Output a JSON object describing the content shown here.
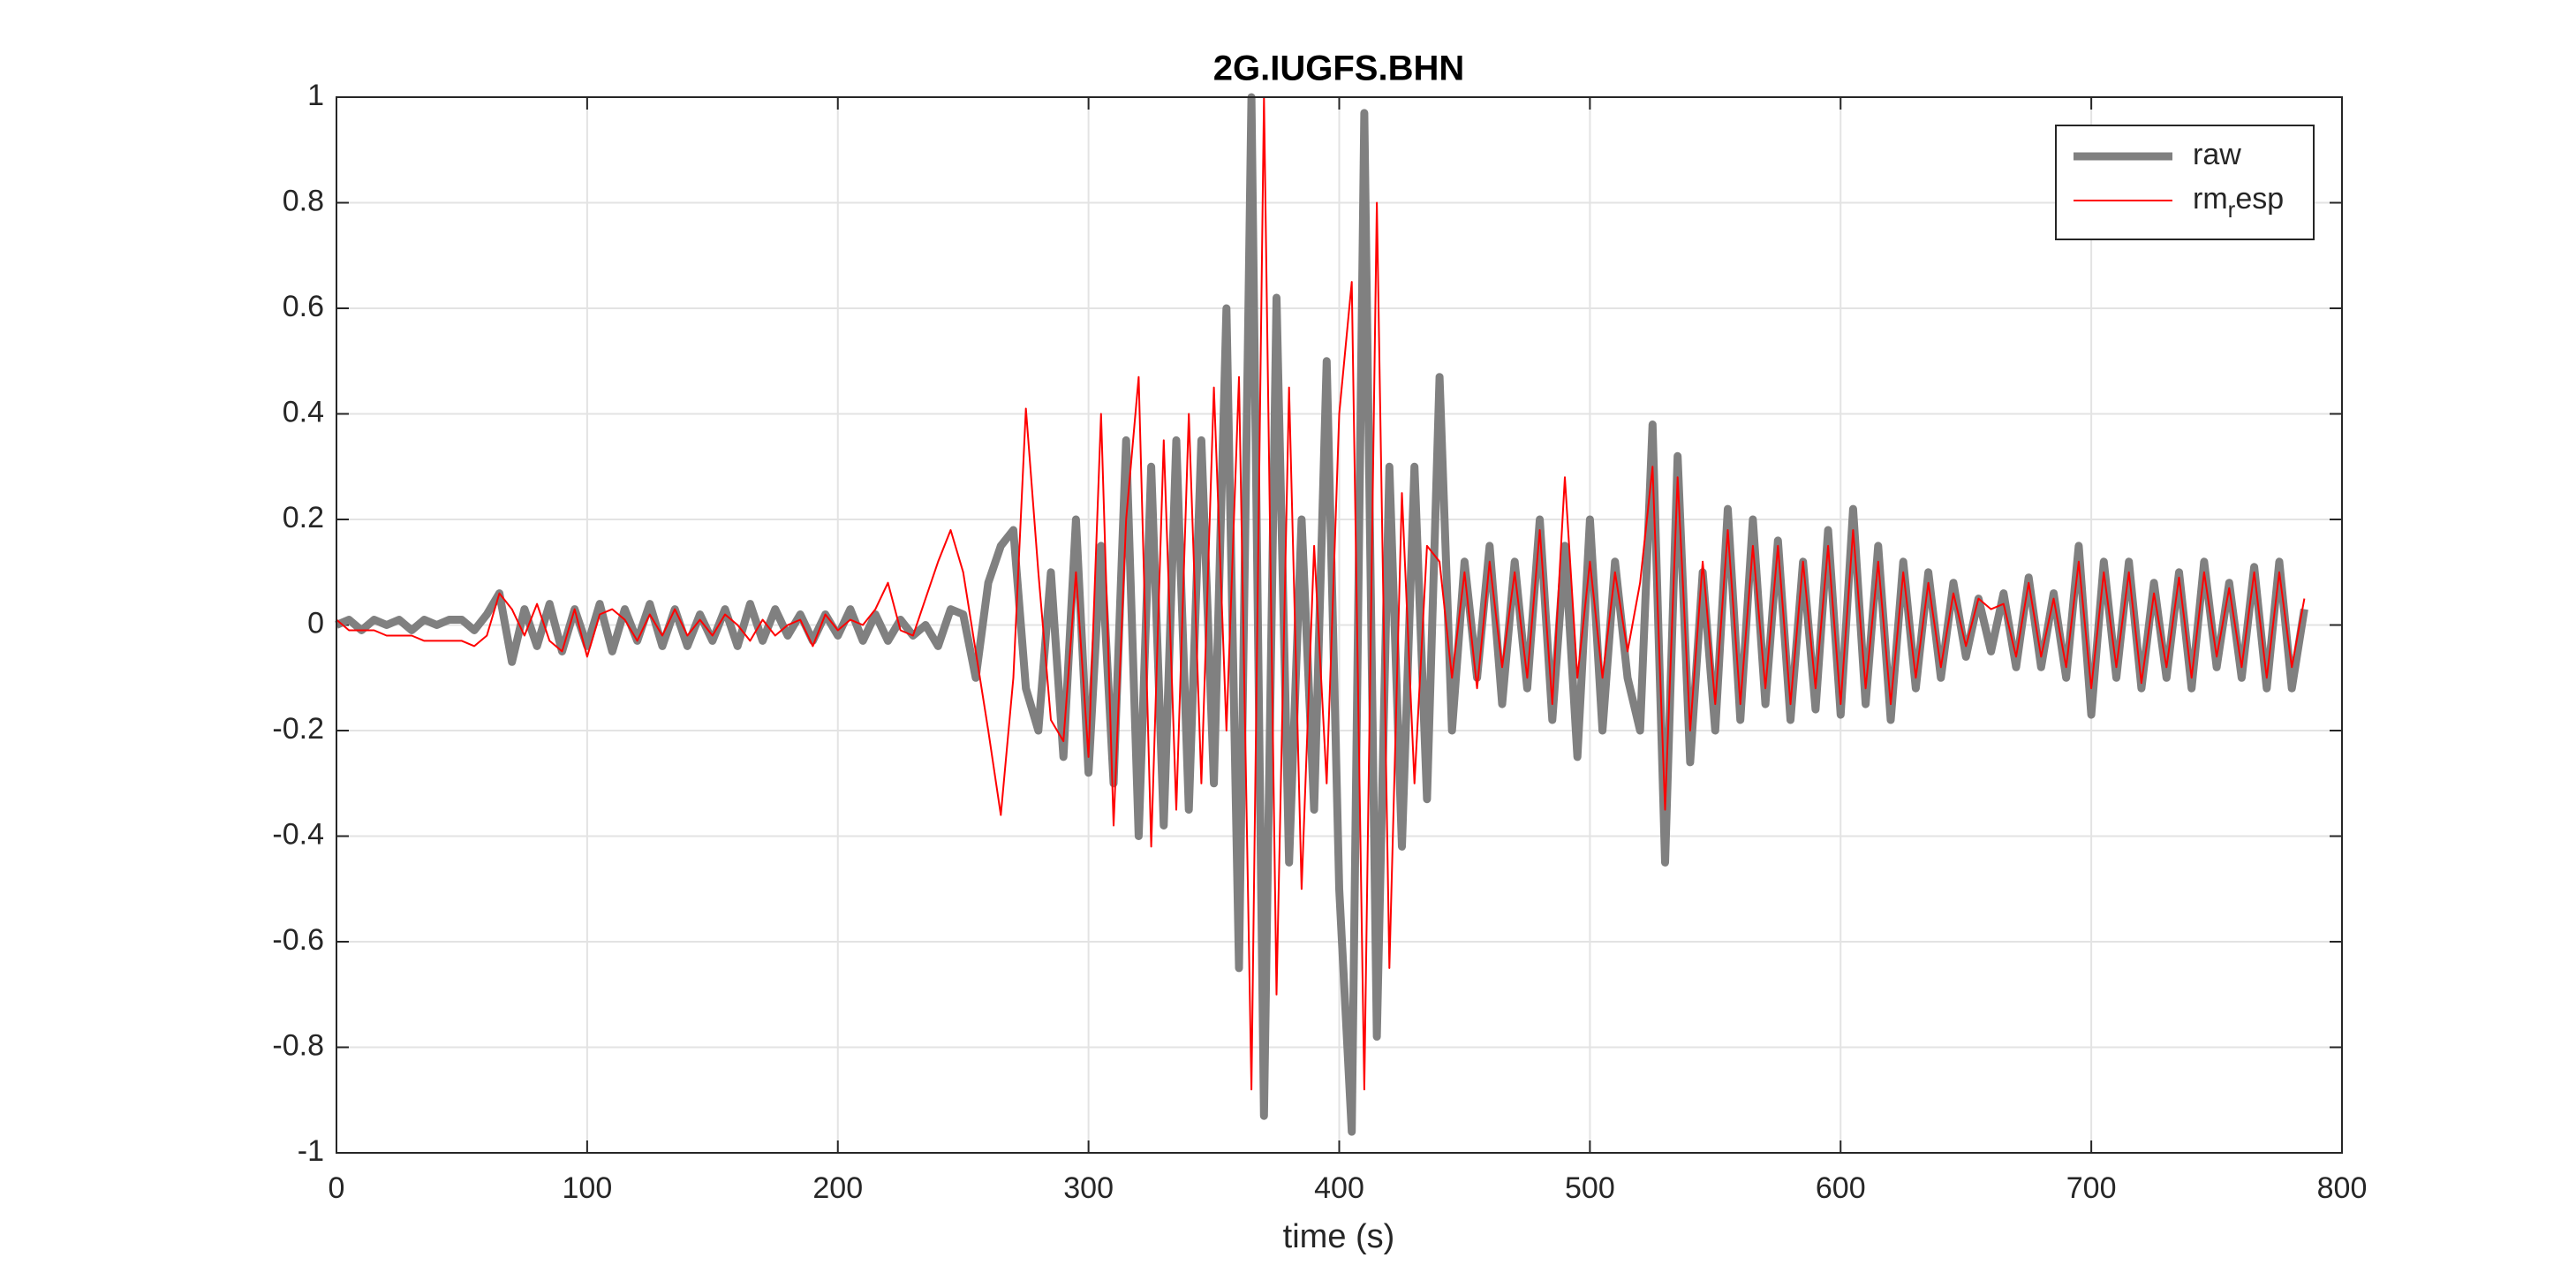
{
  "chart_data": {
    "type": "line",
    "title": "2G.IUGFS.BHN",
    "xlabel": "time (s)",
    "x": [
      0,
      5,
      10,
      15,
      20,
      25,
      30,
      35,
      40,
      45,
      50,
      55,
      60,
      65,
      70,
      75,
      80,
      85,
      90,
      95,
      100,
      105,
      110,
      115,
      120,
      125,
      130,
      135,
      140,
      145,
      150,
      155,
      160,
      165,
      170,
      175,
      180,
      185,
      190,
      195,
      200,
      205,
      210,
      215,
      220,
      225,
      230,
      235,
      240,
      245,
      250,
      255,
      260,
      265,
      270,
      275,
      280,
      285,
      290,
      295,
      300,
      305,
      310,
      315,
      320,
      325,
      330,
      335,
      340,
      345,
      350,
      355,
      360,
      365,
      370,
      375,
      380,
      385,
      390,
      395,
      400,
      405,
      410,
      415,
      420,
      425,
      430,
      435,
      440,
      445,
      450,
      455,
      460,
      465,
      470,
      475,
      480,
      485,
      490,
      495,
      500,
      505,
      510,
      515,
      520,
      525,
      530,
      535,
      540,
      545,
      550,
      555,
      560,
      565,
      570,
      575,
      580,
      585,
      590,
      595,
      600,
      605,
      610,
      615,
      620,
      625,
      630,
      635,
      640,
      645,
      650,
      655,
      660,
      665,
      670,
      675,
      680,
      685,
      690,
      695,
      700,
      705,
      710,
      715,
      720,
      725,
      730,
      735,
      740,
      745,
      750,
      755,
      760,
      765,
      770,
      775,
      780,
      785
    ],
    "series": [
      {
        "name": "raw",
        "color": "#808080",
        "width": 9,
        "values": [
          0,
          0.01,
          -0.01,
          0.01,
          0,
          0.01,
          -0.01,
          0.01,
          0,
          0.01,
          0.01,
          -0.01,
          0.02,
          0.06,
          -0.07,
          0.03,
          -0.04,
          0.04,
          -0.05,
          0.03,
          -0.04,
          0.04,
          -0.05,
          0.03,
          -0.03,
          0.04,
          -0.04,
          0.03,
          -0.04,
          0.02,
          -0.03,
          0.03,
          -0.04,
          0.04,
          -0.03,
          0.03,
          -0.02,
          0.02,
          -0.03,
          0.02,
          -0.02,
          0.03,
          -0.03,
          0.02,
          -0.03,
          0.01,
          -0.02,
          0,
          -0.04,
          0.03,
          0.02,
          -0.1,
          0.08,
          0.15,
          0.18,
          -0.12,
          -0.2,
          0.1,
          -0.25,
          0.2,
          -0.28,
          0.15,
          -0.3,
          0.35,
          -0.4,
          0.3,
          -0.38,
          0.35,
          -0.35,
          0.35,
          -0.3,
          0.6,
          -0.65,
          1.0,
          -0.93,
          0.62,
          -0.45,
          0.2,
          -0.35,
          0.5,
          -0.5,
          -0.96,
          0.97,
          -0.78,
          0.3,
          -0.42,
          0.3,
          -0.33,
          0.47,
          -0.2,
          0.12,
          -0.1,
          0.15,
          -0.15,
          0.12,
          -0.12,
          0.2,
          -0.18,
          0.15,
          -0.25,
          0.2,
          -0.2,
          0.12,
          -0.1,
          -0.2,
          0.38,
          -0.45,
          0.32,
          -0.26,
          0.1,
          -0.2,
          0.22,
          -0.18,
          0.2,
          -0.15,
          0.16,
          -0.18,
          0.12,
          -0.16,
          0.18,
          -0.17,
          0.22,
          -0.15,
          0.15,
          -0.18,
          0.12,
          -0.12,
          0.1,
          -0.1,
          0.08,
          -0.06,
          0.05,
          -0.05,
          0.06,
          -0.08,
          0.09,
          -0.08,
          0.06,
          -0.1,
          0.15,
          -0.17,
          0.12,
          -0.1,
          0.12,
          -0.12,
          0.08,
          -0.1,
          0.1,
          -0.12,
          0.12,
          -0.08,
          0.08,
          -0.1,
          0.11,
          -0.12,
          0.12,
          -0.12,
          0.03
        ]
      },
      {
        "name": "rm_resp",
        "color": "#ff0000",
        "width": 2,
        "values": [
          0.01,
          -0.01,
          -0.01,
          -0.01,
          -0.02,
          -0.02,
          -0.02,
          -0.03,
          -0.03,
          -0.03,
          -0.03,
          -0.04,
          -0.02,
          0.06,
          0.03,
          -0.02,
          0.04,
          -0.03,
          -0.05,
          0.03,
          -0.06,
          0.02,
          0.03,
          0.01,
          -0.03,
          0.02,
          -0.02,
          0.03,
          -0.02,
          0.01,
          -0.02,
          0.02,
          0,
          -0.03,
          0.01,
          -0.02,
          0,
          0.01,
          -0.04,
          0.02,
          -0.01,
          0.01,
          0,
          0.03,
          0.08,
          -0.01,
          -0.02,
          0.05,
          0.12,
          0.18,
          0.1,
          -0.05,
          -0.2,
          -0.36,
          -0.1,
          0.41,
          0.1,
          -0.18,
          -0.22,
          0.1,
          -0.25,
          0.4,
          -0.38,
          0.2,
          0.47,
          -0.42,
          0.35,
          -0.35,
          0.4,
          -0.3,
          0.45,
          -0.2,
          0.47,
          -0.88,
          1.0,
          -0.7,
          0.45,
          -0.5,
          0.15,
          -0.3,
          0.4,
          0.65,
          -0.88,
          0.8,
          -0.65,
          0.25,
          -0.3,
          0.15,
          0.12,
          -0.1,
          0.1,
          -0.12,
          0.12,
          -0.08,
          0.1,
          -0.1,
          0.18,
          -0.15,
          0.28,
          -0.1,
          0.12,
          -0.1,
          0.1,
          -0.05,
          0.08,
          0.3,
          -0.35,
          0.28,
          -0.2,
          0.12,
          -0.15,
          0.18,
          -0.15,
          0.15,
          -0.12,
          0.15,
          -0.15,
          0.12,
          -0.12,
          0.15,
          -0.15,
          0.18,
          -0.12,
          0.12,
          -0.15,
          0.1,
          -0.1,
          0.08,
          -0.08,
          0.06,
          -0.04,
          0.05,
          0.03,
          0.04,
          -0.06,
          0.08,
          -0.06,
          0.05,
          -0.08,
          0.12,
          -0.12,
          0.1,
          -0.08,
          0.1,
          -0.11,
          0.06,
          -0.08,
          0.09,
          -0.1,
          0.1,
          -0.06,
          0.07,
          -0.08,
          0.1,
          -0.1,
          0.1,
          -0.08,
          0.05
        ]
      }
    ],
    "xlim": [
      0,
      800
    ],
    "xticks": [
      0,
      100,
      200,
      300,
      400,
      500,
      600,
      700,
      800
    ],
    "ylim": [
      -1,
      1
    ],
    "yticks": [
      -1,
      -0.8,
      -0.6,
      -0.4,
      -0.2,
      0,
      0.2,
      0.4,
      0.6,
      0.8,
      1
    ],
    "grid": true,
    "legend": "northeast"
  }
}
